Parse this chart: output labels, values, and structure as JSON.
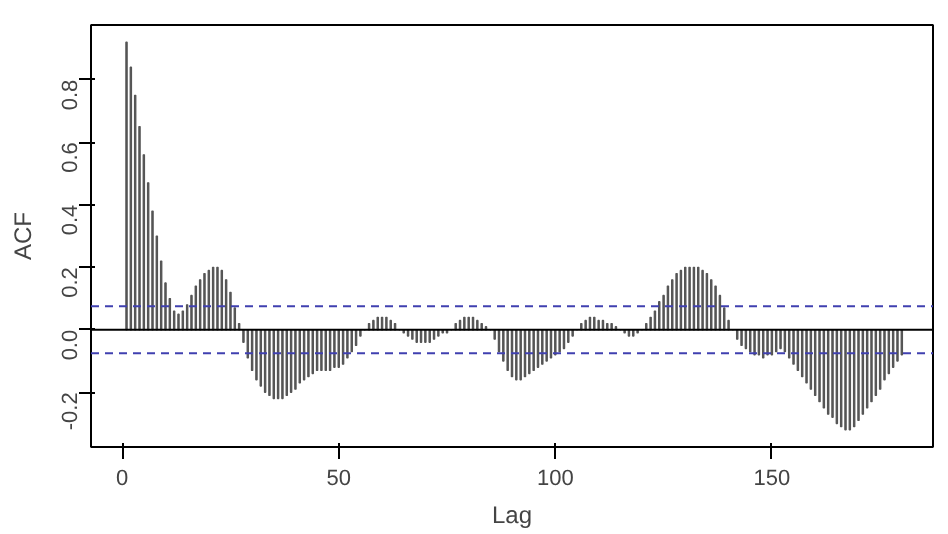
{
  "chart_data": {
    "type": "bar",
    "xlabel": "Lag",
    "ylabel": "ACF",
    "color": "#555555",
    "x": [
      1,
      2,
      3,
      4,
      5,
      6,
      7,
      8,
      9,
      10,
      11,
      12,
      13,
      14,
      15,
      16,
      17,
      18,
      19,
      20,
      21,
      22,
      23,
      24,
      25,
      26,
      27,
      28,
      29,
      30,
      31,
      32,
      33,
      34,
      35,
      36,
      37,
      38,
      39,
      40,
      41,
      42,
      43,
      44,
      45,
      46,
      47,
      48,
      49,
      50,
      51,
      52,
      53,
      54,
      55,
      56,
      57,
      58,
      59,
      60,
      61,
      62,
      63,
      64,
      65,
      66,
      67,
      68,
      69,
      70,
      71,
      72,
      73,
      74,
      75,
      76,
      77,
      78,
      79,
      80,
      81,
      82,
      83,
      84,
      85,
      86,
      87,
      88,
      89,
      90,
      91,
      92,
      93,
      94,
      95,
      96,
      97,
      98,
      99,
      100,
      101,
      102,
      103,
      104,
      105,
      106,
      107,
      108,
      109,
      110,
      111,
      112,
      113,
      114,
      115,
      116,
      117,
      118,
      119,
      120,
      121,
      122,
      123,
      124,
      125,
      126,
      127,
      128,
      129,
      130,
      131,
      132,
      133,
      134,
      135,
      136,
      137,
      138,
      139,
      140,
      141,
      142,
      143,
      144,
      145,
      146,
      147,
      148,
      149,
      150,
      151,
      152,
      153,
      154,
      155,
      156,
      157,
      158,
      159,
      160,
      161,
      162,
      163,
      164,
      165,
      166,
      167,
      168,
      169,
      170,
      171,
      172,
      173,
      174,
      175,
      176,
      177,
      178,
      179,
      180
    ],
    "values": [
      0.92,
      0.84,
      0.75,
      0.65,
      0.56,
      0.47,
      0.38,
      0.3,
      0.22,
      0.15,
      0.1,
      0.06,
      0.05,
      0.06,
      0.08,
      0.11,
      0.14,
      0.16,
      0.18,
      0.19,
      0.2,
      0.2,
      0.19,
      0.16,
      0.12,
      0.07,
      0.02,
      -0.04,
      -0.09,
      -0.13,
      -0.16,
      -0.18,
      -0.2,
      -0.21,
      -0.22,
      -0.22,
      -0.22,
      -0.21,
      -0.2,
      -0.19,
      -0.17,
      -0.16,
      -0.15,
      -0.14,
      -0.13,
      -0.13,
      -0.13,
      -0.13,
      -0.12,
      -0.12,
      -0.11,
      -0.09,
      -0.07,
      -0.05,
      -0.02,
      0.0,
      0.02,
      0.03,
      0.04,
      0.04,
      0.04,
      0.03,
      0.02,
      0.0,
      -0.01,
      -0.02,
      -0.03,
      -0.04,
      -0.04,
      -0.04,
      -0.04,
      -0.03,
      -0.02,
      -0.01,
      -0.01,
      0.0,
      0.02,
      0.03,
      0.04,
      0.04,
      0.04,
      0.03,
      0.02,
      0.01,
      0.0,
      -0.03,
      -0.07,
      -0.1,
      -0.13,
      -0.15,
      -0.16,
      -0.16,
      -0.15,
      -0.14,
      -0.13,
      -0.12,
      -0.11,
      -0.1,
      -0.09,
      -0.08,
      -0.07,
      -0.06,
      -0.04,
      -0.02,
      0.0,
      0.02,
      0.03,
      0.04,
      0.04,
      0.03,
      0.03,
      0.02,
      0.02,
      0.01,
      0.0,
      -0.01,
      -0.02,
      -0.02,
      -0.01,
      0.0,
      0.02,
      0.04,
      0.06,
      0.09,
      0.11,
      0.14,
      0.16,
      0.18,
      0.19,
      0.2,
      0.2,
      0.2,
      0.2,
      0.19,
      0.18,
      0.16,
      0.14,
      0.11,
      0.07,
      0.03,
      0.0,
      -0.03,
      -0.05,
      -0.06,
      -0.07,
      -0.08,
      -0.08,
      -0.09,
      -0.08,
      -0.08,
      -0.07,
      -0.06,
      -0.07,
      -0.09,
      -0.11,
      -0.13,
      -0.15,
      -0.17,
      -0.19,
      -0.21,
      -0.23,
      -0.25,
      -0.27,
      -0.28,
      -0.3,
      -0.31,
      -0.32,
      -0.32,
      -0.31,
      -0.29,
      -0.27,
      -0.25,
      -0.23,
      -0.21,
      -0.19,
      -0.16,
      -0.14,
      -0.12,
      -0.1,
      -0.08
    ],
    "xlim": [
      -7.2,
      187.2
    ],
    "ylim": [
      -0.375,
      0.975
    ],
    "xticks": [
      0,
      50,
      100,
      150
    ],
    "yticks": [
      {
        "value": -0.2,
        "label": "-0.2"
      },
      {
        "value": 0,
        "label": "0.0"
      },
      {
        "value": 0.2,
        "label": "0.2"
      },
      {
        "value": 0.4,
        "label": "0.4"
      },
      {
        "value": 0.6,
        "label": "0.6"
      },
      {
        "value": 0.8,
        "label": "0.8"
      }
    ],
    "ref_lines": [
      {
        "axis": "y",
        "value": 0,
        "color": "#000000",
        "line_style": "solid"
      },
      {
        "axis": "y",
        "value": 0.075,
        "color": "#4040b0",
        "line_style": "dashed"
      },
      {
        "axis": "y",
        "value": -0.075,
        "color": "#4040b0",
        "line_style": "dashed"
      }
    ],
    "grid": false
  }
}
